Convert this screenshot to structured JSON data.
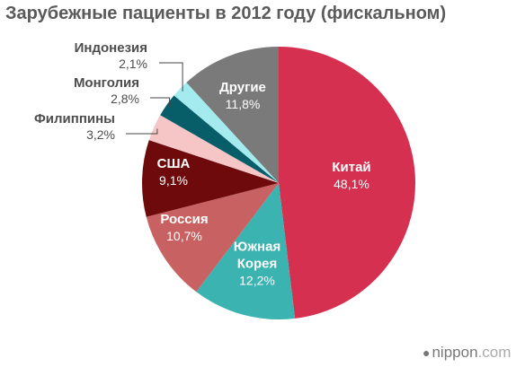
{
  "chart_data": {
    "type": "pie",
    "title": "Зарубежные пациенты в 2012 году (фискальном)",
    "start": "12 o'clock",
    "direction": "clockwise",
    "slices": [
      {
        "name": "Китай",
        "value": 48.1,
        "label": "48,1%",
        "color": "#d63050"
      },
      {
        "name": "Южная\nКорея",
        "value": 12.2,
        "label": "12,2%",
        "color": "#3bb3b0"
      },
      {
        "name": "Россия",
        "value": 10.7,
        "label": "10,7%",
        "color": "#c86262"
      },
      {
        "name": "США",
        "value": 9.1,
        "label": "9,1%",
        "color": "#6e0a0b"
      },
      {
        "name": "Филиппины",
        "value": 3.2,
        "label": "3,2%",
        "color": "#f6c5c6"
      },
      {
        "name": "Монголия",
        "value": 2.8,
        "label": "2,8%",
        "color": "#075e68"
      },
      {
        "name": "Индонезия",
        "value": 2.1,
        "label": "2,1%",
        "color": "#a4ebf0"
      },
      {
        "name": "Другие",
        "value": 11.8,
        "label": "11,8%",
        "color": "#7a7a7a"
      }
    ]
  },
  "brand": {
    "prefix": "nippon",
    "suffix": ".com"
  }
}
